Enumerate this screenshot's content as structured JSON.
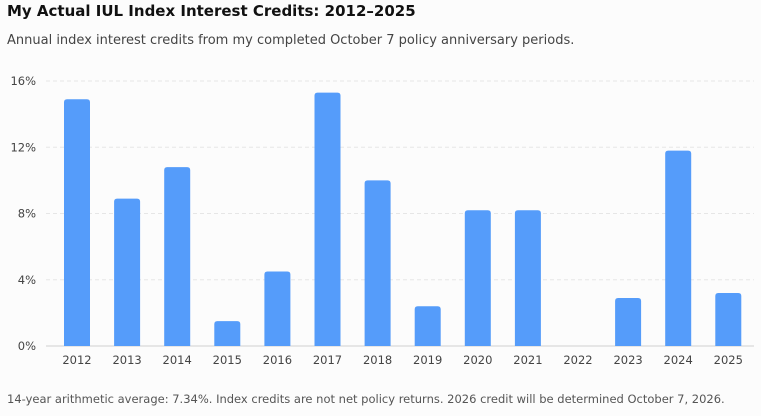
{
  "header": {
    "title": "My Actual IUL Index Interest Credits: 2012–2025",
    "subtitle": "Annual index interest credits from my completed October 7 policy anniversary periods."
  },
  "footnote": "14-year arithmetic average: 7.34%. Index credits are not net policy returns. 2026 credit will be determined October 7, 2026.",
  "colors": {
    "bar": "#559cfa",
    "grid": "#e6e6e6",
    "axis": "#cfcfcf"
  },
  "chart_data": {
    "type": "bar",
    "title": "My Actual IUL Index Interest Credits: 2012–2025",
    "xlabel": "",
    "ylabel": "",
    "categories": [
      "2012",
      "2013",
      "2014",
      "2015",
      "2016",
      "2017",
      "2018",
      "2019",
      "2020",
      "2021",
      "2022",
      "2023",
      "2024",
      "2025"
    ],
    "values": [
      14.9,
      8.9,
      10.8,
      1.5,
      4.5,
      15.3,
      10.0,
      2.4,
      8.2,
      8.2,
      0,
      2.9,
      11.8,
      3.2
    ],
    "value_unit": "%",
    "ylim": [
      0,
      16
    ],
    "yticks": [
      0,
      4,
      8,
      12,
      16
    ],
    "ytick_labels": [
      "0%",
      "4%",
      "8%",
      "12%",
      "16%"
    ],
    "grid": true,
    "legend": "none"
  }
}
